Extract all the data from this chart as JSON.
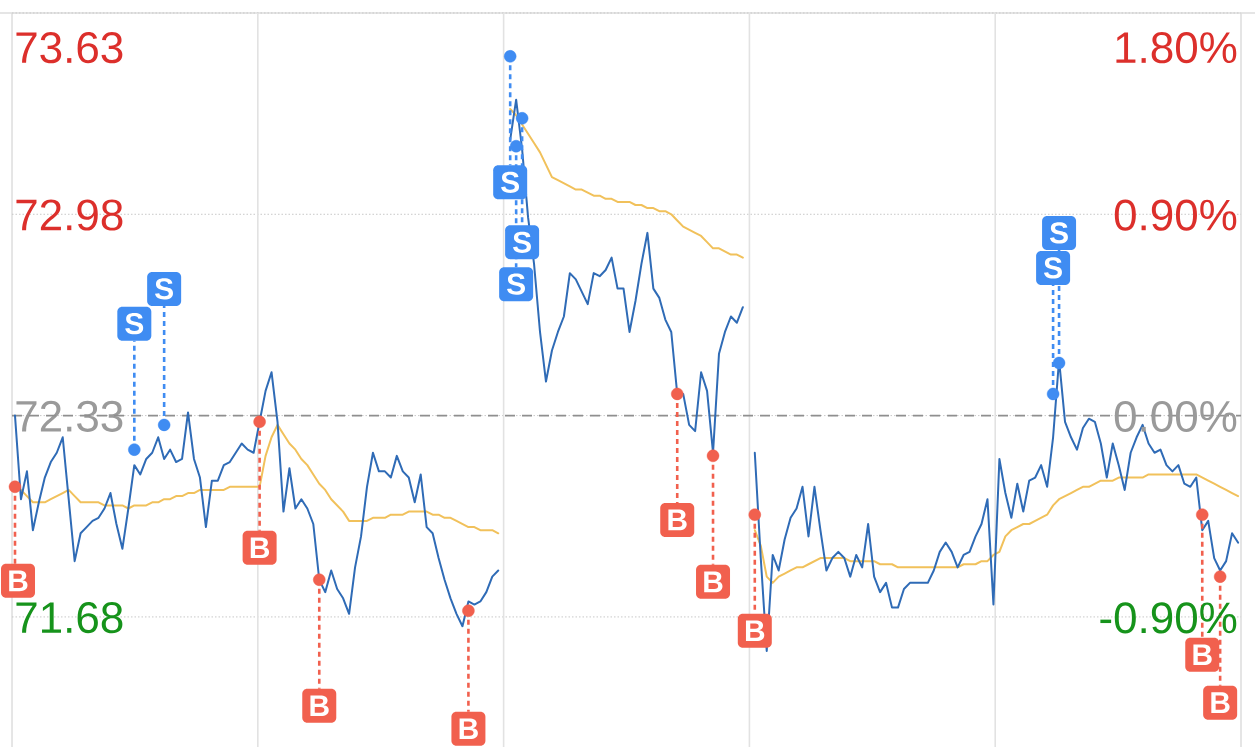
{
  "chart_data": {
    "type": "line",
    "categories": [
      null,
      null,
      null,
      null,
      null,
      null,
      null,
      null,
      null,
      null,
      null,
      null,
      null,
      null,
      null,
      null,
      null,
      null,
      null,
      null,
      null,
      null,
      null,
      null,
      null,
      null,
      null,
      null,
      null,
      null,
      null,
      null,
      null,
      null,
      null,
      null,
      null,
      null,
      null,
      null,
      null,
      null,
      null,
      null,
      null,
      null,
      null,
      null,
      null,
      null,
      null,
      null,
      null,
      null,
      null,
      null,
      null,
      null,
      null,
      null,
      null,
      null,
      null,
      null,
      null,
      null,
      null,
      null,
      null,
      null,
      null,
      null,
      null,
      null,
      null,
      null,
      null,
      null,
      null,
      null,
      null,
      null,
      null,
      null,
      null,
      null,
      null,
      null,
      null,
      null,
      null,
      null,
      null,
      null,
      null,
      null,
      null,
      null,
      null,
      null,
      null,
      null,
      null,
      null,
      null,
      null,
      null,
      null,
      null,
      null,
      null,
      null,
      null,
      null,
      null,
      null,
      null,
      null,
      null,
      null,
      null,
      null,
      null,
      null,
      null,
      null,
      null,
      null,
      null,
      null,
      null,
      null,
      null,
      null,
      null,
      null,
      null,
      null,
      null,
      null,
      null,
      null,
      null,
      null,
      null,
      null,
      null,
      null,
      null,
      null,
      null,
      null,
      null,
      null,
      null,
      null,
      null,
      null,
      null,
      null,
      null,
      null,
      null,
      null,
      null,
      null,
      null,
      null,
      null,
      null,
      null,
      null,
      null,
      null,
      null,
      null,
      null,
      null,
      null,
      null,
      null,
      null,
      null,
      null,
      null,
      null,
      null,
      null,
      null,
      null,
      null,
      null,
      null,
      null,
      null,
      null,
      null,
      null,
      null,
      null,
      null,
      null,
      null,
      null,
      null,
      null
    ],
    "series": [
      {
        "color": "#f1c15b",
        "values": [
          72.1,
          72.09,
          72.07,
          72.05,
          72.05,
          72.05,
          72.06,
          72.07,
          72.08,
          72.09,
          72.07,
          72.05,
          72.05,
          72.05,
          72.05,
          72.04,
          72.04,
          72.04,
          72.04,
          72.03,
          72.04,
          72.04,
          72.04,
          72.05,
          72.05,
          72.06,
          72.06,
          72.07,
          72.07,
          72.08,
          72.08,
          72.09,
          72.09,
          72.09,
          72.09,
          72.09,
          72.1,
          72.1,
          72.1,
          72.1,
          72.1,
          72.1,
          72.2,
          72.26,
          72.3,
          72.27,
          72.24,
          72.22,
          72.19,
          72.17,
          72.14,
          72.11,
          72.09,
          72.06,
          72.04,
          72.02,
          71.99,
          71.99,
          71.99,
          71.99,
          72.0,
          72.0,
          72.0,
          72.01,
          72.01,
          72.01,
          72.02,
          72.02,
          72.02,
          72.02,
          72.01,
          72.01,
          72.0,
          72.0,
          71.99,
          71.98,
          71.97,
          71.97,
          71.96,
          71.96,
          71.96,
          71.95,
          null,
          73.32,
          73.3,
          73.27,
          73.24,
          73.21,
          73.18,
          73.14,
          73.1,
          73.09,
          73.08,
          73.07,
          73.06,
          73.06,
          73.05,
          73.04,
          73.04,
          73.03,
          73.03,
          73.02,
          73.02,
          73.02,
          73.01,
          73.01,
          73.0,
          73.0,
          72.99,
          72.99,
          72.98,
          72.96,
          72.94,
          72.93,
          72.92,
          72.91,
          72.89,
          72.87,
          72.87,
          72.86,
          72.85,
          72.85,
          72.84,
          null,
          71.96,
          71.91,
          71.81,
          71.79,
          71.81,
          71.82,
          71.83,
          71.84,
          71.84,
          71.85,
          71.86,
          71.87,
          71.87,
          71.87,
          71.87,
          71.87,
          71.86,
          71.86,
          71.86,
          71.86,
          71.86,
          71.85,
          71.85,
          71.85,
          71.84,
          71.84,
          71.84,
          71.84,
          71.84,
          71.84,
          71.84,
          71.84,
          71.84,
          71.84,
          71.84,
          71.85,
          71.85,
          71.85,
          71.86,
          71.86,
          71.88,
          71.89,
          71.94,
          71.96,
          71.97,
          71.98,
          71.98,
          71.99,
          72.0,
          72.01,
          72.04,
          72.06,
          72.07,
          72.08,
          72.09,
          72.1,
          72.1,
          72.11,
          72.12,
          72.12,
          72.12,
          72.13,
          72.13,
          72.13,
          72.13,
          72.13,
          72.14,
          72.14,
          72.14,
          72.14,
          72.14,
          72.14,
          72.14,
          72.14,
          72.14,
          72.13,
          72.12,
          72.11,
          72.1,
          72.09,
          72.08,
          72.07
        ]
      },
      {
        "color": "#2f6bb6",
        "values": [
          72.33,
          72.06,
          72.15,
          71.96,
          72.05,
          72.13,
          72.18,
          72.21,
          72.26,
          72.06,
          71.86,
          71.95,
          71.97,
          71.99,
          72.0,
          72.03,
          72.08,
          71.98,
          71.9,
          72.03,
          72.17,
          72.14,
          72.19,
          72.21,
          72.26,
          72.19,
          72.22,
          72.18,
          72.19,
          72.34,
          72.19,
          72.13,
          71.97,
          72.12,
          72.12,
          72.17,
          72.18,
          72.21,
          72.24,
          72.22,
          72.21,
          72.31,
          72.41,
          72.47,
          72.31,
          72.02,
          72.16,
          72.03,
          72.06,
          72.03,
          71.98,
          71.8,
          71.76,
          71.83,
          71.77,
          71.74,
          71.69,
          71.84,
          71.94,
          72.1,
          72.21,
          72.15,
          72.15,
          72.13,
          72.2,
          72.15,
          72.13,
          72.05,
          72.14,
          71.97,
          71.95,
          71.87,
          71.8,
          71.74,
          71.69,
          71.65,
          71.73,
          71.72,
          71.73,
          71.76,
          71.81,
          71.83,
          null,
          73.22,
          73.35,
          73.19,
          72.97,
          72.82,
          72.6,
          72.44,
          72.54,
          72.6,
          72.65,
          72.79,
          72.77,
          72.73,
          72.69,
          72.79,
          72.78,
          72.8,
          72.84,
          72.74,
          72.74,
          72.6,
          72.7,
          72.82,
          72.92,
          72.74,
          72.71,
          72.64,
          72.6,
          72.4,
          72.4,
          72.3,
          72.28,
          72.47,
          72.41,
          72.21,
          72.53,
          72.6,
          72.65,
          72.63,
          72.68,
          null,
          72.21,
          71.87,
          71.57,
          71.88,
          71.83,
          71.93,
          72.0,
          72.03,
          72.1,
          71.94,
          72.1,
          71.96,
          71.83,
          71.87,
          71.89,
          71.87,
          71.81,
          71.88,
          71.84,
          71.98,
          71.81,
          71.76,
          71.79,
          71.71,
          71.71,
          71.77,
          71.79,
          71.79,
          71.79,
          71.79,
          71.83,
          71.89,
          71.92,
          71.89,
          71.84,
          71.88,
          71.89,
          71.94,
          71.98,
          72.06,
          71.72,
          72.19,
          72.08,
          72.0,
          72.11,
          72.02,
          72.12,
          72.13,
          72.17,
          72.1,
          72.26,
          72.51,
          72.31,
          72.26,
          72.22,
          72.29,
          72.32,
          72.31,
          72.24,
          72.13,
          72.24,
          72.17,
          72.09,
          72.21,
          72.26,
          72.3,
          72.24,
          72.21,
          72.22,
          72.17,
          72.15,
          72.17,
          72.11,
          72.1,
          72.13,
          71.96,
          71.99,
          71.87,
          71.83,
          71.86,
          71.95,
          71.92
        ]
      },
      {
        "type": "scatter",
        "color": "#f1604e",
        "marker": "circle",
        "values": [
          72.1,
          null,
          null,
          null,
          null,
          null,
          null,
          null,
          null,
          null,
          null,
          null,
          null,
          null,
          null,
          null,
          null,
          null,
          null,
          null,
          null,
          null,
          null,
          null,
          null,
          null,
          null,
          null,
          null,
          null,
          null,
          null,
          null,
          null,
          null,
          null,
          null,
          null,
          null,
          null,
          null,
          72.31,
          null,
          null,
          null,
          null,
          null,
          null,
          null,
          null,
          null,
          71.8,
          null,
          null,
          null,
          null,
          null,
          null,
          null,
          null,
          null,
          null,
          null,
          null,
          null,
          null,
          null,
          null,
          null,
          null,
          null,
          null,
          null,
          null,
          null,
          null,
          71.7,
          null,
          null,
          null,
          null,
          null,
          null,
          null,
          null,
          null,
          null,
          null,
          null,
          null,
          null,
          null,
          null,
          null,
          null,
          null,
          null,
          null,
          null,
          null,
          null,
          null,
          null,
          null,
          null,
          null,
          null,
          null,
          null,
          null,
          null,
          72.4,
          null,
          null,
          null,
          null,
          null,
          72.2,
          null,
          null,
          null,
          null,
          null,
          null,
          72.01,
          null,
          null,
          null,
          null,
          null,
          null,
          null,
          null,
          null,
          null,
          null,
          null,
          null,
          null,
          null,
          null,
          null,
          null,
          null,
          null,
          null,
          null,
          null,
          null,
          null,
          null,
          null,
          null,
          null,
          null,
          null,
          null,
          null,
          null,
          null,
          null,
          null,
          null,
          null,
          null,
          null,
          null,
          null,
          null,
          null,
          null,
          null,
          null,
          null,
          null,
          null,
          null,
          null,
          null,
          null,
          null,
          null,
          null,
          null,
          null,
          null,
          null,
          null,
          null,
          null,
          null,
          null,
          null,
          null,
          null,
          null,
          null,
          null,
          null,
          72.01,
          null,
          null,
          71.81,
          null,
          null,
          null
        ],
        "value_labels": [
          "B",
          null,
          null,
          null,
          null,
          null,
          null,
          null,
          null,
          null,
          null,
          null,
          null,
          null,
          null,
          null,
          null,
          null,
          null,
          null,
          null,
          null,
          null,
          null,
          null,
          null,
          null,
          null,
          null,
          null,
          null,
          null,
          null,
          null,
          null,
          null,
          null,
          null,
          null,
          null,
          null,
          "B",
          null,
          null,
          null,
          null,
          null,
          null,
          null,
          null,
          null,
          "B",
          null,
          null,
          null,
          null,
          null,
          null,
          null,
          null,
          null,
          null,
          null,
          null,
          null,
          null,
          null,
          null,
          null,
          null,
          null,
          null,
          null,
          null,
          null,
          null,
          "B",
          null,
          null,
          null,
          null,
          null,
          null,
          null,
          null,
          null,
          null,
          null,
          null,
          null,
          null,
          null,
          null,
          null,
          null,
          null,
          null,
          null,
          null,
          null,
          null,
          null,
          null,
          null,
          null,
          null,
          null,
          null,
          null,
          null,
          null,
          "B",
          null,
          null,
          null,
          null,
          null,
          "B",
          null,
          null,
          null,
          null,
          null,
          null,
          "B",
          null,
          null,
          null,
          null,
          null,
          null,
          null,
          null,
          null,
          null,
          null,
          null,
          null,
          null,
          null,
          null,
          null,
          null,
          null,
          null,
          null,
          null,
          null,
          null,
          null,
          null,
          null,
          null,
          null,
          null,
          null,
          null,
          null,
          null,
          null,
          null,
          null,
          null,
          null,
          null,
          null,
          null,
          null,
          null,
          null,
          null,
          null,
          null,
          null,
          null,
          null,
          null,
          null,
          null,
          null,
          null,
          null,
          null,
          null,
          null,
          null,
          null,
          null,
          null,
          null,
          null,
          null,
          null,
          null,
          null,
          null,
          null,
          null,
          null,
          "B",
          null,
          null,
          "B",
          null,
          null,
          null
        ]
      },
      {
        "type": "scatter",
        "color": "#3f8cf2",
        "marker": "circle",
        "values": [
          null,
          null,
          null,
          null,
          null,
          null,
          null,
          null,
          null,
          null,
          null,
          null,
          null,
          null,
          null,
          null,
          null,
          null,
          null,
          null,
          72.22,
          null,
          null,
          null,
          null,
          72.3,
          null,
          null,
          null,
          null,
          null,
          null,
          null,
          null,
          null,
          null,
          null,
          null,
          null,
          null,
          null,
          null,
          null,
          null,
          null,
          null,
          null,
          null,
          null,
          null,
          null,
          null,
          null,
          null,
          null,
          null,
          null,
          null,
          null,
          null,
          null,
          null,
          null,
          null,
          null,
          null,
          null,
          null,
          null,
          null,
          null,
          null,
          null,
          null,
          null,
          null,
          null,
          null,
          null,
          null,
          null,
          null,
          null,
          73.49,
          73.2,
          73.29,
          null,
          null,
          null,
          null,
          null,
          null,
          null,
          null,
          null,
          null,
          null,
          null,
          null,
          null,
          null,
          null,
          null,
          null,
          null,
          null,
          null,
          null,
          null,
          null,
          null,
          null,
          null,
          null,
          null,
          null,
          null,
          null,
          null,
          null,
          null,
          null,
          null,
          null,
          null,
          null,
          null,
          null,
          null,
          null,
          null,
          null,
          null,
          null,
          null,
          null,
          null,
          null,
          null,
          null,
          null,
          null,
          null,
          null,
          null,
          null,
          null,
          null,
          null,
          null,
          null,
          null,
          null,
          null,
          null,
          null,
          null,
          null,
          null,
          null,
          null,
          null,
          null,
          null,
          null,
          null,
          null,
          null,
          null,
          null,
          null,
          null,
          null,
          null,
          72.4,
          72.5,
          null,
          null,
          null,
          null,
          null,
          null,
          null,
          null,
          null,
          null,
          null,
          null,
          null,
          null,
          null,
          null,
          null,
          null,
          null,
          null,
          null,
          null,
          null,
          null,
          null,
          null,
          null,
          null,
          null,
          null
        ],
        "value_labels": [
          null,
          null,
          null,
          null,
          null,
          null,
          null,
          null,
          null,
          null,
          null,
          null,
          null,
          null,
          null,
          null,
          null,
          null,
          null,
          null,
          "S",
          null,
          null,
          null,
          null,
          "S",
          null,
          null,
          null,
          null,
          null,
          null,
          null,
          null,
          null,
          null,
          null,
          null,
          null,
          null,
          null,
          null,
          null,
          null,
          null,
          null,
          null,
          null,
          null,
          null,
          null,
          null,
          null,
          null,
          null,
          null,
          null,
          null,
          null,
          null,
          null,
          null,
          null,
          null,
          null,
          null,
          null,
          null,
          null,
          null,
          null,
          null,
          null,
          null,
          null,
          null,
          null,
          null,
          null,
          null,
          null,
          null,
          null,
          "S",
          "S",
          "S",
          null,
          null,
          null,
          null,
          null,
          null,
          null,
          null,
          null,
          null,
          null,
          null,
          null,
          null,
          null,
          null,
          null,
          null,
          null,
          null,
          null,
          null,
          null,
          null,
          null,
          null,
          null,
          null,
          null,
          null,
          null,
          null,
          null,
          null,
          null,
          null,
          null,
          null,
          null,
          null,
          null,
          null,
          null,
          null,
          null,
          null,
          null,
          null,
          null,
          null,
          null,
          null,
          null,
          null,
          null,
          null,
          null,
          null,
          null,
          null,
          null,
          null,
          null,
          null,
          null,
          null,
          null,
          null,
          null,
          null,
          null,
          null,
          null,
          null,
          null,
          null,
          null,
          null,
          null,
          null,
          null,
          null,
          null,
          null,
          null,
          null,
          null,
          null,
          "S",
          "S",
          null,
          null,
          null,
          null,
          null,
          null,
          null,
          null,
          null,
          null,
          null,
          null,
          null,
          null,
          null,
          null,
          null,
          null,
          null,
          null,
          null,
          null,
          null,
          null,
          null,
          null,
          null,
          null,
          null,
          null
        ]
      }
    ],
    "ylim": [
      71.26,
      73.63
    ],
    "yticks": [
      71.68,
      72.33,
      72.98,
      73.63
    ],
    "y2lim": [
      -1.48,
      1.8
    ],
    "y2ticks": [
      {
        "value": -0.9,
        "label": "-0.90%"
      },
      {
        "value": 0,
        "label": "0.00%"
      },
      {
        "value": 0.9,
        "label": "0.90%"
      },
      {
        "value": 1.8,
        "label": "1.80%"
      }
    ],
    "ref_lines": [
      {
        "axis": "y",
        "value": 72.33,
        "color": "#8f8f8f",
        "line_style": "dashed"
      }
    ],
    "grid": "y"
  }
}
